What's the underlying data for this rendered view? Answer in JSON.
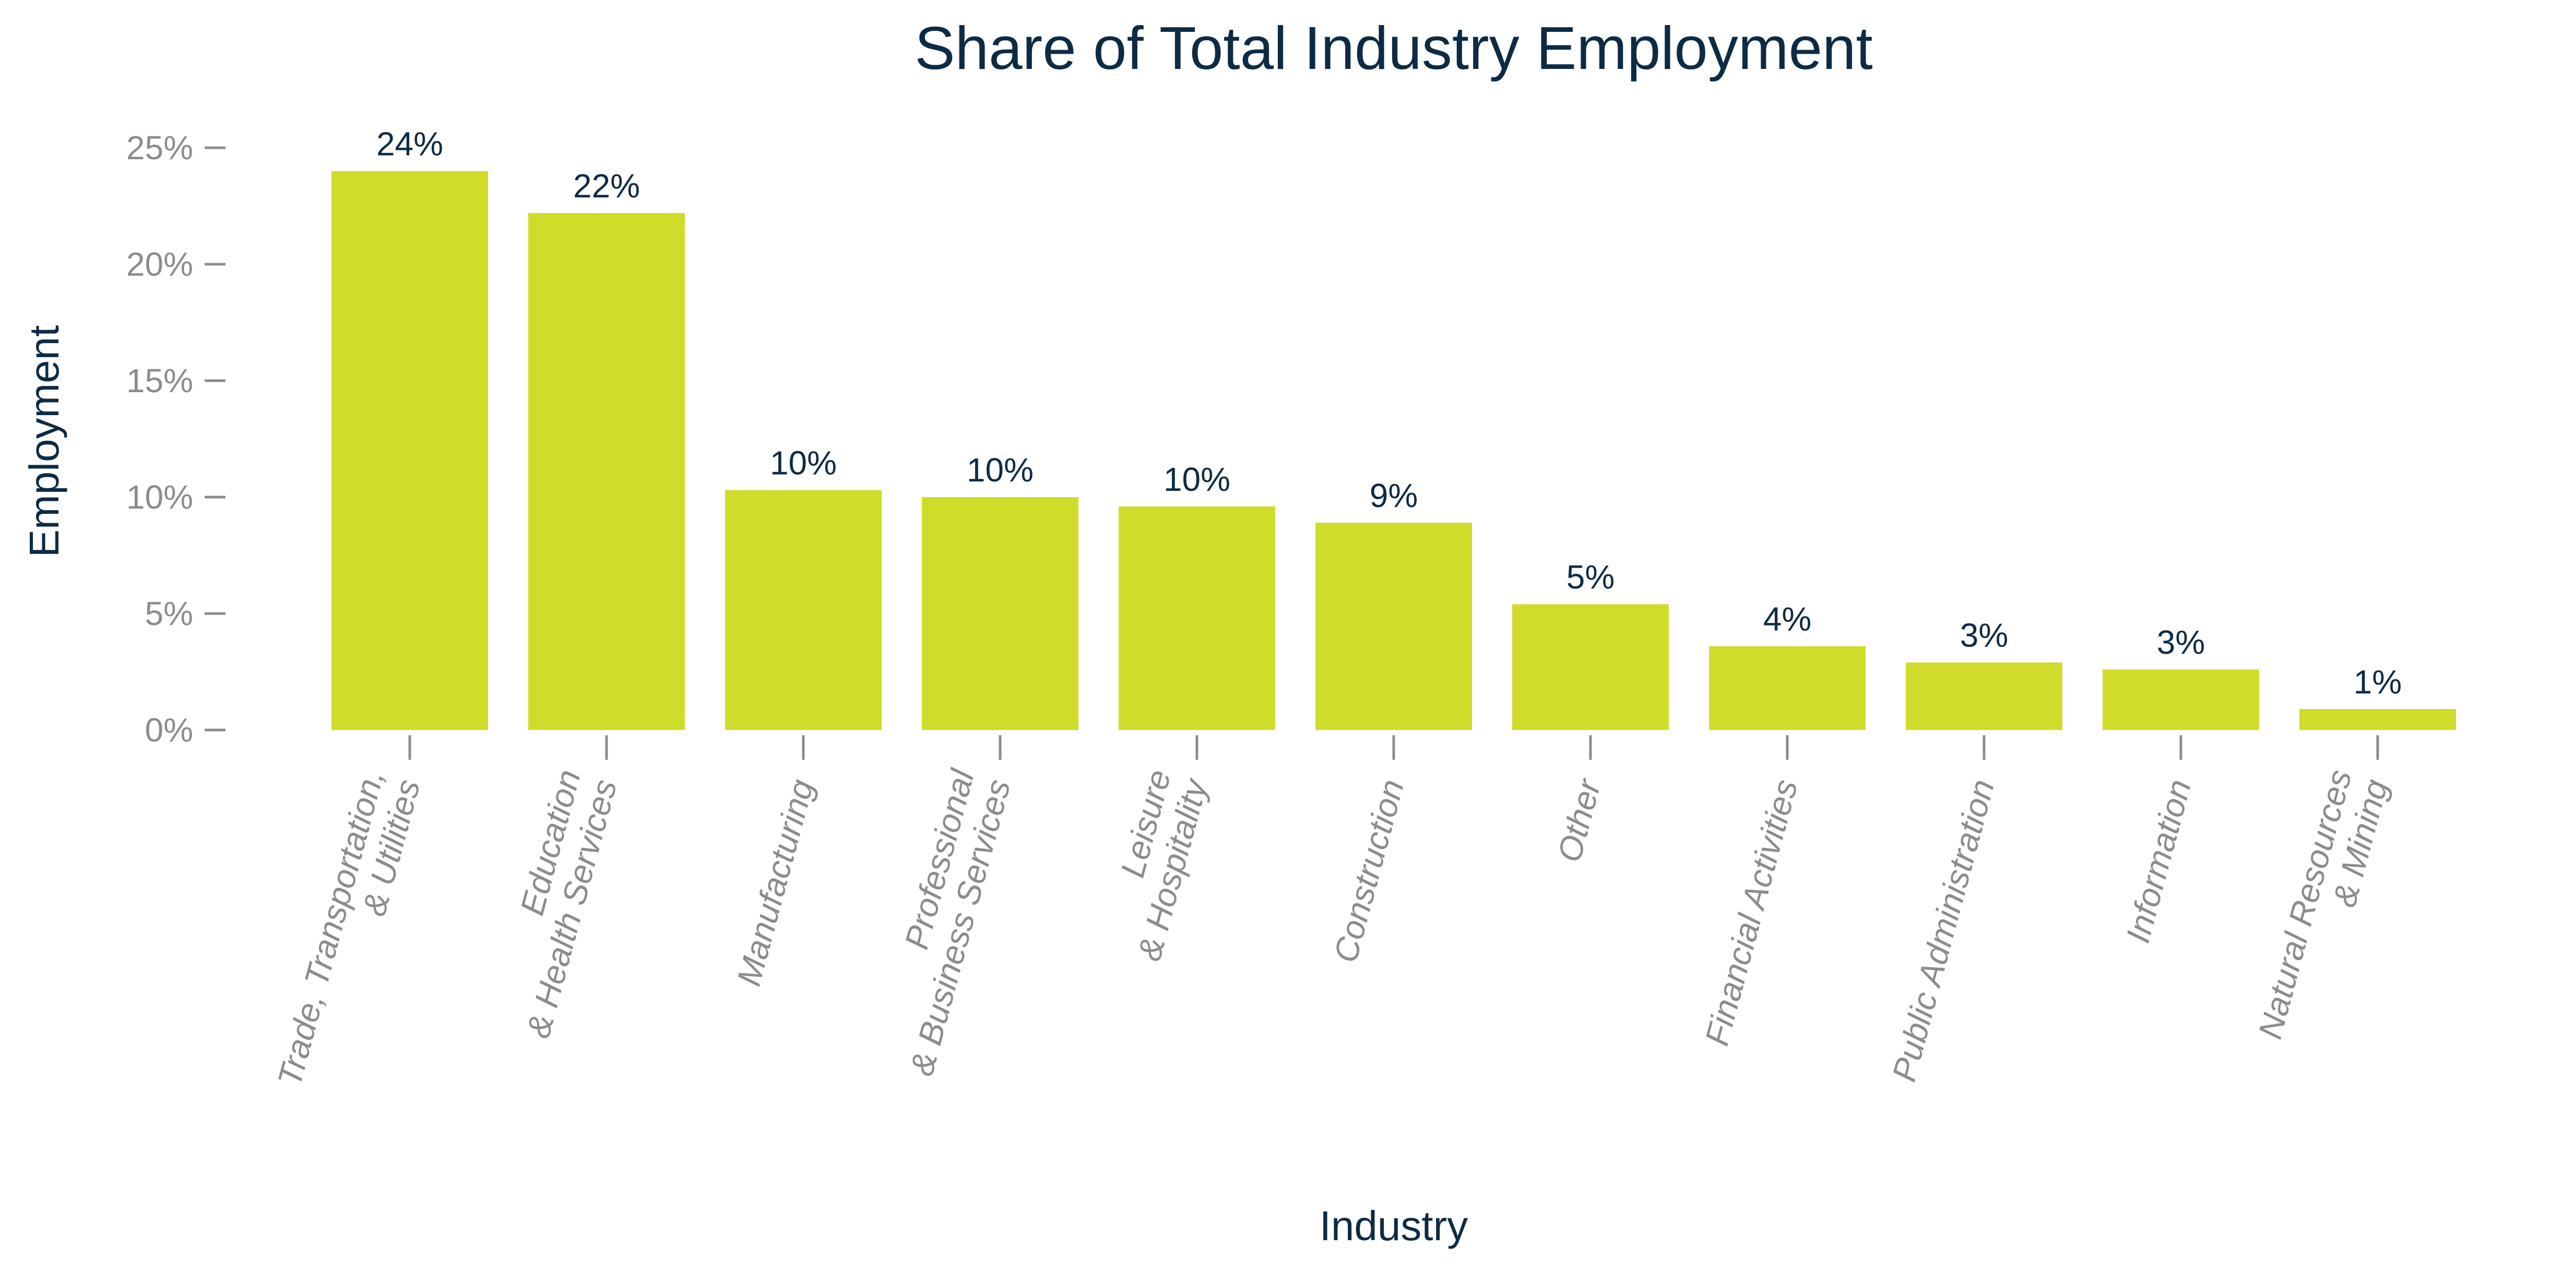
{
  "chart_data": {
    "type": "bar",
    "title": "Share of Total Industry Employment",
    "xlabel": "Industry",
    "ylabel": "Employment",
    "ylim": [
      0,
      25
    ],
    "yticks": [
      0,
      5,
      10,
      15,
      20,
      25
    ],
    "ytick_labels": [
      "0%",
      "5%",
      "10%",
      "15%",
      "20%",
      "25%"
    ],
    "grid": false,
    "bar_color": "#d0dc2a",
    "categories": [
      "Trade, Transportation,\n& Utilities",
      "Education\n& Health Services",
      "Manufacturing",
      "Professional\n& Business Services",
      "Leisure\n& Hospitality",
      "Construction",
      "Other",
      "Financial Activities",
      "Public Administration",
      "Information",
      "Natural Resources\n& Mining"
    ],
    "values": [
      24.0,
      22.2,
      10.3,
      10.0,
      9.6,
      8.9,
      5.4,
      3.6,
      2.9,
      2.6,
      0.9
    ],
    "data_labels": [
      "24%",
      "22%",
      "10%",
      "10%",
      "10%",
      "9%",
      "5%",
      "4%",
      "3%",
      "3%",
      "1%"
    ]
  }
}
